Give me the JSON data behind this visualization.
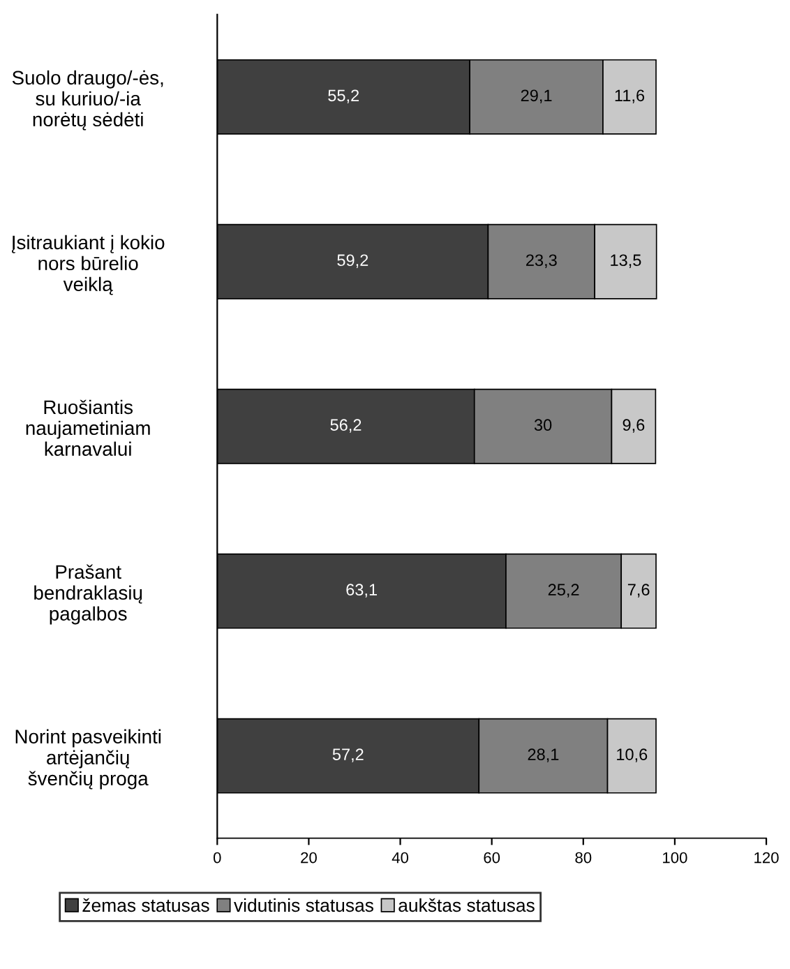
{
  "chart_data": {
    "type": "bar",
    "orientation": "horizontal",
    "stacked": true,
    "categories": [
      "Suolo draugo/-ės,\nsu kuriuo/-ia\nnorėtų sėdėti",
      "Įsitraukiant į kokio\nnors būrelio\nveiklą",
      "Ruošiantis\nnaujametiniam\nkarnavalui",
      "Prašant\nbendraklasių\npagalbos",
      "Norint pasveikinti\nartėjančių\nšvenčių proga"
    ],
    "series": [
      {
        "name": "žemas statusas",
        "color": "#404040",
        "values": [
          55.2,
          59.2,
          56.2,
          63.1,
          57.2
        ],
        "value_labels": [
          "55,2",
          "59,2",
          "56,2",
          "63,1",
          "57,2"
        ]
      },
      {
        "name": "vidutinis statusas",
        "color": "#808080",
        "values": [
          29.1,
          23.3,
          30,
          25.2,
          28.1
        ],
        "value_labels": [
          "29,1",
          "23,3",
          "30",
          "25,2",
          "28,1"
        ]
      },
      {
        "name": "aukštas statusas",
        "color": "#c8c8c8",
        "values": [
          11.6,
          13.5,
          9.6,
          7.6,
          10.6
        ],
        "value_labels": [
          "11,6",
          "13,5",
          "9,6",
          "7,6",
          "10,6"
        ]
      }
    ],
    "xlim": [
      0,
      120
    ],
    "xticks": [
      0,
      20,
      40,
      60,
      80,
      100,
      120
    ],
    "grid": false,
    "legend": "bottom"
  }
}
